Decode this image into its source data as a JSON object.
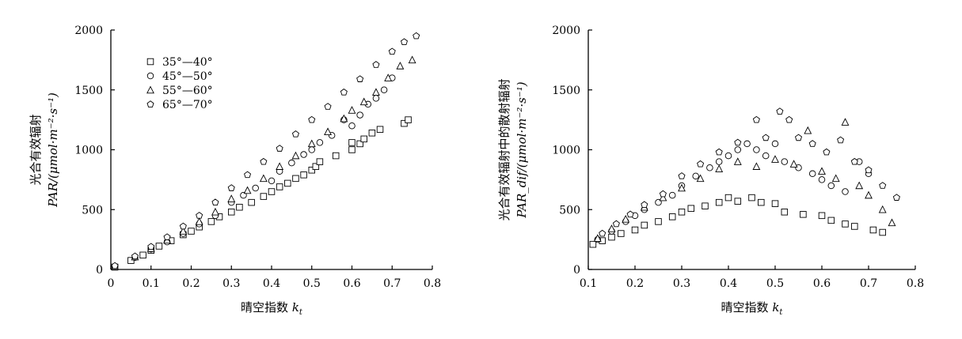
{
  "chart_data": [
    {
      "type": "scatter",
      "xlabel": "晴空指数 k_t",
      "xlabel_main": "晴空指数",
      "xlabel_var": "k",
      "xlabel_sub": "t",
      "ylabel_line1": "光合有效辐射",
      "ylabel_line2": "PAR/(μmol·m⁻²·s⁻¹)",
      "xlim": [
        0,
        0.8
      ],
      "ylim": [
        0,
        2000
      ],
      "xticks": [
        "0",
        "0.1",
        "0.2",
        "0.3",
        "0.4",
        "0.5",
        "0.6",
        "0.7",
        "0.8"
      ],
      "yticks": [
        "0",
        "500",
        "1000",
        "1500",
        "2000"
      ],
      "legend": {
        "position": "top-left"
      },
      "series": [
        {
          "name": "35°—40°",
          "marker": "square",
          "points": [
            [
              0.01,
              20
            ],
            [
              0.05,
              75
            ],
            [
              0.08,
              120
            ],
            [
              0.1,
              160
            ],
            [
              0.12,
              195
            ],
            [
              0.15,
              240
            ],
            [
              0.18,
              290
            ],
            [
              0.2,
              320
            ],
            [
              0.22,
              355
            ],
            [
              0.25,
              400
            ],
            [
              0.27,
              440
            ],
            [
              0.3,
              480
            ],
            [
              0.32,
              520
            ],
            [
              0.35,
              560
            ],
            [
              0.38,
              610
            ],
            [
              0.4,
              650
            ],
            [
              0.42,
              690
            ],
            [
              0.44,
              720
            ],
            [
              0.46,
              760
            ],
            [
              0.48,
              790
            ],
            [
              0.5,
              830
            ],
            [
              0.51,
              860
            ],
            [
              0.52,
              900
            ],
            [
              0.56,
              950
            ],
            [
              0.6,
              1000
            ],
            [
              0.6,
              1060
            ],
            [
              0.62,
              1050
            ],
            [
              0.63,
              1090
            ],
            [
              0.65,
              1140
            ],
            [
              0.67,
              1170
            ],
            [
              0.73,
              1220
            ],
            [
              0.74,
              1250
            ]
          ]
        },
        {
          "name": "45°—50°",
          "marker": "circle",
          "points": [
            [
              0.01,
              25
            ],
            [
              0.06,
              100
            ],
            [
              0.1,
              170
            ],
            [
              0.14,
              230
            ],
            [
              0.18,
              300
            ],
            [
              0.22,
              380
            ],
            [
              0.26,
              450
            ],
            [
              0.3,
              560
            ],
            [
              0.33,
              620
            ],
            [
              0.36,
              680
            ],
            [
              0.4,
              740
            ],
            [
              0.42,
              820
            ],
            [
              0.45,
              890
            ],
            [
              0.48,
              960
            ],
            [
              0.5,
              1000
            ],
            [
              0.52,
              1060
            ],
            [
              0.55,
              1120
            ],
            [
              0.58,
              1250
            ],
            [
              0.6,
              1200
            ],
            [
              0.62,
              1290
            ],
            [
              0.64,
              1380
            ],
            [
              0.66,
              1430
            ],
            [
              0.68,
              1500
            ],
            [
              0.7,
              1600
            ]
          ]
        },
        {
          "name": "55°—60°",
          "marker": "triangle",
          "points": [
            [
              0.01,
              25
            ],
            [
              0.06,
              105
            ],
            [
              0.1,
              175
            ],
            [
              0.14,
              245
            ],
            [
              0.18,
              320
            ],
            [
              0.22,
              400
            ],
            [
              0.26,
              480
            ],
            [
              0.3,
              590
            ],
            [
              0.34,
              660
            ],
            [
              0.38,
              760
            ],
            [
              0.42,
              860
            ],
            [
              0.46,
              950
            ],
            [
              0.5,
              1050
            ],
            [
              0.54,
              1150
            ],
            [
              0.58,
              1260
            ],
            [
              0.6,
              1330
            ],
            [
              0.63,
              1400
            ],
            [
              0.66,
              1480
            ],
            [
              0.69,
              1600
            ],
            [
              0.72,
              1700
            ],
            [
              0.75,
              1750
            ]
          ]
        },
        {
          "name": "65°—70°",
          "marker": "pentagon",
          "points": [
            [
              0.01,
              30
            ],
            [
              0.06,
              110
            ],
            [
              0.1,
              190
            ],
            [
              0.14,
              270
            ],
            [
              0.18,
              360
            ],
            [
              0.22,
              450
            ],
            [
              0.26,
              560
            ],
            [
              0.3,
              680
            ],
            [
              0.34,
              790
            ],
            [
              0.38,
              900
            ],
            [
              0.42,
              1010
            ],
            [
              0.46,
              1130
            ],
            [
              0.5,
              1250
            ],
            [
              0.54,
              1360
            ],
            [
              0.58,
              1480
            ],
            [
              0.62,
              1590
            ],
            [
              0.66,
              1710
            ],
            [
              0.7,
              1820
            ],
            [
              0.73,
              1900
            ],
            [
              0.76,
              1950
            ]
          ]
        }
      ]
    },
    {
      "type": "scatter",
      "xlabel": "晴空指数 k_t",
      "xlabel_main": "晴空指数",
      "xlabel_var": "k",
      "xlabel_sub": "t",
      "ylabel_line1": "光合有效辐射中的散射辐射",
      "ylabel_line2": "PAR_dif/(μmol·m⁻²·s⁻¹)",
      "xlim": [
        0.1,
        0.8
      ],
      "ylim": [
        0,
        2000
      ],
      "xticks": [
        "0.1",
        "0.2",
        "0.3",
        "0.4",
        "0.5",
        "0.6",
        "0.7",
        "0.8"
      ],
      "yticks": [
        "0",
        "500",
        "1000",
        "1500",
        "2000"
      ],
      "series": [
        {
          "name": "35°—40°",
          "marker": "square",
          "points": [
            [
              0.11,
              210
            ],
            [
              0.13,
              240
            ],
            [
              0.15,
              270
            ],
            [
              0.17,
              300
            ],
            [
              0.2,
              330
            ],
            [
              0.22,
              370
            ],
            [
              0.25,
              400
            ],
            [
              0.28,
              440
            ],
            [
              0.3,
              480
            ],
            [
              0.32,
              510
            ],
            [
              0.35,
              530
            ],
            [
              0.38,
              560
            ],
            [
              0.4,
              600
            ],
            [
              0.42,
              570
            ],
            [
              0.45,
              600
            ],
            [
              0.47,
              560
            ],
            [
              0.5,
              550
            ],
            [
              0.52,
              480
            ],
            [
              0.56,
              460
            ],
            [
              0.6,
              450
            ],
            [
              0.62,
              410
            ],
            [
              0.65,
              380
            ],
            [
              0.67,
              360
            ],
            [
              0.71,
              330
            ],
            [
              0.73,
              310
            ]
          ]
        },
        {
          "name": "45°—50°",
          "marker": "circle",
          "points": [
            [
              0.12,
              250
            ],
            [
              0.15,
              320
            ],
            [
              0.18,
              400
            ],
            [
              0.2,
              450
            ],
            [
              0.22,
              500
            ],
            [
              0.25,
              560
            ],
            [
              0.28,
              620
            ],
            [
              0.3,
              700
            ],
            [
              0.33,
              780
            ],
            [
              0.36,
              850
            ],
            [
              0.38,
              900
            ],
            [
              0.4,
              950
            ],
            [
              0.42,
              1000
            ],
            [
              0.44,
              1050
            ],
            [
              0.46,
              1000
            ],
            [
              0.48,
              950
            ],
            [
              0.5,
              1050
            ],
            [
              0.52,
              900
            ],
            [
              0.55,
              850
            ],
            [
              0.58,
              800
            ],
            [
              0.6,
              750
            ],
            [
              0.62,
              700
            ],
            [
              0.65,
              650
            ],
            [
              0.68,
              900
            ],
            [
              0.7,
              800
            ]
          ]
        },
        {
          "name": "55°—60°",
          "marker": "triangle",
          "points": [
            [
              0.12,
              260
            ],
            [
              0.15,
              340
            ],
            [
              0.18,
              420
            ],
            [
              0.22,
              520
            ],
            [
              0.26,
              600
            ],
            [
              0.3,
              680
            ],
            [
              0.34,
              760
            ],
            [
              0.38,
              840
            ],
            [
              0.42,
              900
            ],
            [
              0.46,
              860
            ],
            [
              0.5,
              920
            ],
            [
              0.54,
              880
            ],
            [
              0.57,
              1160
            ],
            [
              0.6,
              820
            ],
            [
              0.63,
              760
            ],
            [
              0.65,
              1230
            ],
            [
              0.68,
              700
            ],
            [
              0.7,
              620
            ],
            [
              0.73,
              500
            ],
            [
              0.75,
              390
            ]
          ]
        },
        {
          "name": "65°—70°",
          "marker": "pentagon",
          "points": [
            [
              0.13,
              300
            ],
            [
              0.16,
              380
            ],
            [
              0.19,
              460
            ],
            [
              0.22,
              540
            ],
            [
              0.26,
              630
            ],
            [
              0.3,
              780
            ],
            [
              0.34,
              880
            ],
            [
              0.38,
              980
            ],
            [
              0.42,
              1060
            ],
            [
              0.46,
              1250
            ],
            [
              0.48,
              1100
            ],
            [
              0.51,
              1320
            ],
            [
              0.53,
              1250
            ],
            [
              0.55,
              1100
            ],
            [
              0.58,
              1050
            ],
            [
              0.61,
              980
            ],
            [
              0.64,
              1080
            ],
            [
              0.67,
              900
            ],
            [
              0.7,
              830
            ],
            [
              0.73,
              700
            ],
            [
              0.76,
              600
            ]
          ]
        }
      ]
    }
  ]
}
